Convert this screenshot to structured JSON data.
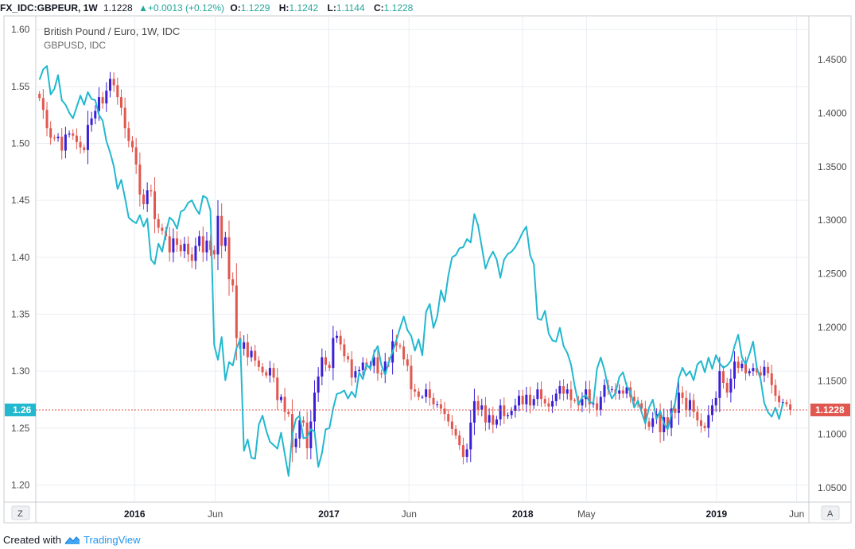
{
  "header": {
    "symbol": "FX_IDC:GBPEUR, 1W",
    "last": "1.1228",
    "change": "▲+0.0013 (+0.12%)",
    "open_label": "O:",
    "open": "1.1229",
    "high_label": "H:",
    "high": "1.1242",
    "low_label": "L:",
    "low": "1.1144",
    "close_label": "C:",
    "close": "1.1228"
  },
  "legend": {
    "title": "British Pound / Euro, 1W, IDC",
    "subtitle": "GBPUSD, IDC"
  },
  "price_tags": {
    "left": "1.26",
    "right": "1.1228"
  },
  "corner": {
    "left": "Z",
    "right": "A"
  },
  "footer": {
    "created": "Created with",
    "brand": "TradingView"
  },
  "colors": {
    "up": "#3a1fd6",
    "down": "#e0574f",
    "line": "#22b8cf",
    "grid": "#e9edf2",
    "price_line": "#e0574f",
    "left_tag": "#22b8cf",
    "right_tag": "#e0574f"
  },
  "chart_data": {
    "type": "candlestick+line",
    "left_axis": {
      "series": "GBPUSD, IDC",
      "ticks": [
        "1.60",
        "1.55",
        "1.50",
        "1.45",
        "1.40",
        "1.35",
        "1.30",
        "1.25",
        "1.20"
      ],
      "ylim": [
        1.185,
        1.612
      ]
    },
    "right_axis": {
      "series": "British Pound / Euro, 1W, IDC",
      "ticks": [
        "1.4500",
        "1.4000",
        "1.3500",
        "1.3000",
        "1.2500",
        "1.2000",
        "1.1500",
        "1.1000",
        "1.0500"
      ],
      "ylim": [
        1.0367,
        1.4908
      ]
    },
    "x_axis": {
      "range": [
        "2015-06-29",
        "2019-06-24"
      ],
      "labels": [
        {
          "date": "2016-01-01",
          "text": "2016",
          "bold": true
        },
        {
          "date": "2016-06-01",
          "text": "Jun",
          "bold": false
        },
        {
          "date": "2017-01-01",
          "text": "2017",
          "bold": true
        },
        {
          "date": "2017-06-01",
          "text": "Jun",
          "bold": false
        },
        {
          "date": "2018-01-01",
          "text": "2018",
          "bold": true
        },
        {
          "date": "2018-05-01",
          "text": "May",
          "bold": false
        },
        {
          "date": "2019-01-01",
          "text": "2019",
          "bold": true
        },
        {
          "date": "2019-06-01",
          "text": "Jun",
          "bold": false
        }
      ]
    },
    "gbpeur_weekly": {
      "start_date": "2015-07-06",
      "week_step_days": 7,
      "close": [
        1.414,
        1.403,
        1.386,
        1.377,
        1.3765,
        1.378,
        1.365,
        1.38,
        1.381,
        1.379,
        1.373,
        1.368,
        1.3655,
        1.389,
        1.395,
        1.402,
        1.415,
        1.409,
        1.421,
        1.432,
        1.426,
        1.415,
        1.405,
        1.386,
        1.374,
        1.368,
        1.352,
        1.324,
        1.315,
        1.328,
        1.327,
        1.301,
        1.293,
        1.29,
        1.285,
        1.27,
        1.283,
        1.277,
        1.271,
        1.278,
        1.268,
        1.262,
        1.276,
        1.285,
        1.27,
        1.281,
        1.272,
        1.268,
        1.304,
        1.276,
        1.284,
        1.245,
        1.239,
        1.19,
        1.18,
        1.186,
        1.172,
        1.178,
        1.169,
        1.163,
        1.158,
        1.155,
        1.162,
        1.153,
        1.132,
        1.135,
        1.121,
        1.119,
        1.088,
        1.096,
        1.113,
        1.111,
        1.087,
        1.112,
        1.139,
        1.154,
        1.172,
        1.165,
        1.162,
        1.19,
        1.192,
        1.184,
        1.173,
        1.17,
        1.153,
        1.159,
        1.16,
        1.167,
        1.164,
        1.164,
        1.172,
        1.157,
        1.156,
        1.168,
        1.167,
        1.187,
        1.183,
        1.182,
        1.17,
        1.164,
        1.142,
        1.14,
        1.135,
        1.135,
        1.142,
        1.134,
        1.128,
        1.128,
        1.124,
        1.119,
        1.112,
        1.105,
        1.099,
        1.09,
        1.079,
        1.086,
        1.111,
        1.131,
        1.123,
        1.127,
        1.111,
        1.118,
        1.109,
        1.114,
        1.127,
        1.117,
        1.118,
        1.122,
        1.127,
        1.136,
        1.128,
        1.137,
        1.127,
        1.133,
        1.142,
        1.133,
        1.129,
        1.126,
        1.131,
        1.138,
        1.145,
        1.138,
        1.142,
        1.132,
        1.131,
        1.127,
        1.133,
        1.142,
        1.128,
        1.129,
        1.123,
        1.135,
        1.146,
        1.142,
        1.142,
        1.138,
        1.141,
        1.138,
        1.144,
        1.135,
        1.131,
        1.129,
        1.124,
        1.112,
        1.107,
        1.115,
        1.119,
        1.102,
        1.116,
        1.106,
        1.124,
        1.12,
        1.139,
        1.134,
        1.123,
        1.132,
        1.121,
        1.113,
        1.108,
        1.106,
        1.118,
        1.127,
        1.134,
        1.159,
        1.148,
        1.139,
        1.152,
        1.168,
        1.162,
        1.166,
        1.157,
        1.159,
        1.162,
        1.158,
        1.155,
        1.163,
        1.157,
        1.146,
        1.136,
        1.13,
        1.13,
        1.128,
        1.1228
      ],
      "last": 1.1228
    },
    "gbpusd_weekly_close": {
      "start_date": "2015-07-06",
      "week_step_days": 7,
      "values": [
        1.556,
        1.565,
        1.568,
        1.543,
        1.548,
        1.56,
        1.538,
        1.534,
        1.527,
        1.522,
        1.532,
        1.542,
        1.534,
        1.545,
        1.539,
        1.538,
        1.525,
        1.52,
        1.502,
        1.492,
        1.48,
        1.46,
        1.468,
        1.452,
        1.435,
        1.432,
        1.43,
        1.437,
        1.427,
        1.434,
        1.398,
        1.394,
        1.412,
        1.405,
        1.422,
        1.435,
        1.432,
        1.425,
        1.44,
        1.442,
        1.448,
        1.45,
        1.443,
        1.438,
        1.454,
        1.452,
        1.441,
        1.323,
        1.31,
        1.33,
        1.292,
        1.308,
        1.305,
        1.32,
        1.328,
        1.23,
        1.24,
        1.224,
        1.223,
        1.253,
        1.261,
        1.248,
        1.238,
        1.235,
        1.232,
        1.246,
        1.227,
        1.208,
        1.244,
        1.258,
        1.261,
        1.241,
        1.242,
        1.249,
        1.247,
        1.216,
        1.228,
        1.249,
        1.25,
        1.267,
        1.28,
        1.281,
        1.283,
        1.276,
        1.282,
        1.277,
        1.299,
        1.293,
        1.306,
        1.302,
        1.316,
        1.322,
        1.305,
        1.297,
        1.308,
        1.317,
        1.327,
        1.338,
        1.348,
        1.336,
        1.331,
        1.318,
        1.328,
        1.314,
        1.352,
        1.359,
        1.338,
        1.348,
        1.371,
        1.361,
        1.384,
        1.4,
        1.402,
        1.408,
        1.409,
        1.416,
        1.413,
        1.438,
        1.428,
        1.409,
        1.39,
        1.399,
        1.405,
        1.398,
        1.382,
        1.398,
        1.403,
        1.405,
        1.409,
        1.415,
        1.422,
        1.427,
        1.402,
        1.394,
        1.346,
        1.345,
        1.353,
        1.333,
        1.327,
        1.326,
        1.338,
        1.322,
        1.316,
        1.306,
        1.287,
        1.271,
        1.277,
        1.279,
        1.273,
        1.272,
        1.302,
        1.312,
        1.301,
        1.285,
        1.276,
        1.281,
        1.295,
        1.299,
        1.287,
        1.282,
        1.268,
        1.274,
        1.264,
        1.254,
        1.268,
        1.275,
        1.258,
        1.265,
        1.254,
        1.249,
        1.262,
        1.272,
        1.294,
        1.303,
        1.296,
        1.3,
        1.292,
        1.306,
        1.309,
        1.299,
        1.312,
        1.302,
        1.314,
        1.307,
        1.303,
        1.305,
        1.309,
        1.322,
        1.332,
        1.312,
        1.306,
        1.315,
        1.326,
        1.303,
        1.293,
        1.272,
        1.264,
        1.26,
        1.268,
        1.258,
        1.272
      ]
    }
  }
}
